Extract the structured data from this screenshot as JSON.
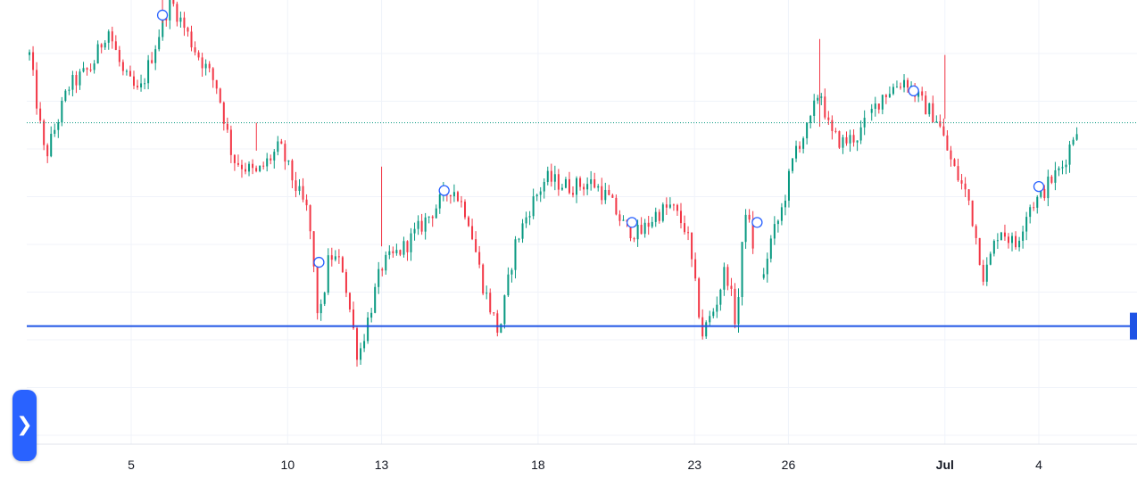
{
  "chart_data": {
    "type": "candlestick",
    "x_tick_labels": [
      "5",
      "10",
      "13",
      "18",
      "23",
      "26",
      "Jul",
      "4"
    ],
    "x_tick_dates": [
      "06-05",
      "06-10",
      "06-13",
      "06-18",
      "06-23",
      "06-26",
      "07-01",
      "07-04"
    ],
    "grid": true,
    "up_color": "#089981",
    "down_color": "#f23645",
    "price_line_color": "#089981",
    "horizontal_line_color": "#1e53e5",
    "marker_color": "#2962ff",
    "y_range_relative": [
      0,
      100
    ],
    "horizontal_line_level": 20,
    "last_price_level": 71,
    "anchors": [
      [
        "06-02",
        88
      ],
      [
        "06-02",
        62
      ],
      [
        "06-03",
        80
      ],
      [
        "06-04",
        85
      ],
      [
        "06-04",
        95
      ],
      [
        "06-05",
        83
      ],
      [
        "06-05",
        78
      ],
      [
        "06-06",
        90
      ],
      [
        "06-06",
        102
      ],
      [
        "06-07",
        90
      ],
      [
        "06-08",
        80
      ],
      [
        "06-08",
        62
      ],
      [
        "06-09",
        58
      ],
      [
        "06-10",
        65
      ],
      [
        "06-10",
        55
      ],
      [
        "06-11",
        48
      ],
      [
        "06-11",
        20
      ],
      [
        "06-11",
        38
      ],
      [
        "06-12",
        35
      ],
      [
        "06-12",
        12
      ],
      [
        "06-13",
        35
      ],
      [
        "06-14",
        40
      ],
      [
        "06-14",
        45
      ],
      [
        "06-15",
        50
      ],
      [
        "06-15",
        55
      ],
      [
        "06-16",
        48
      ],
      [
        "06-16",
        30
      ],
      [
        "06-17",
        18
      ],
      [
        "06-17",
        40
      ],
      [
        "06-18",
        50
      ],
      [
        "06-18",
        57
      ],
      [
        "06-19",
        55
      ],
      [
        "06-20",
        56
      ],
      [
        "06-20",
        52
      ],
      [
        "06-21",
        45
      ],
      [
        "06-21",
        43
      ],
      [
        "06-22",
        48
      ],
      [
        "06-22",
        50
      ],
      [
        "06-23",
        44
      ],
      [
        "06-23",
        18
      ],
      [
        "06-24",
        25
      ],
      [
        "06-24",
        35
      ],
      [
        "06-24",
        20
      ],
      [
        "06-25",
        50
      ],
      [
        "06-25",
        40
      ],
      [
        "06-25",
        28
      ],
      [
        "06-25",
        40
      ],
      [
        "06-26",
        48
      ],
      [
        "06-26",
        65
      ],
      [
        "06-27",
        70
      ],
      [
        "06-27",
        80
      ],
      [
        "06-27",
        68
      ],
      [
        "06-28",
        66
      ],
      [
        "06-28",
        68
      ],
      [
        "06-29",
        78
      ],
      [
        "06-30",
        82
      ],
      [
        "06-30",
        76
      ],
      [
        "07-01",
        72
      ],
      [
        "07-01",
        60
      ],
      [
        "07-02",
        52
      ],
      [
        "07-02",
        32
      ],
      [
        "07-03",
        45
      ],
      [
        "07-03",
        40
      ],
      [
        "07-04",
        50
      ],
      [
        "07-04",
        52
      ],
      [
        "07-04",
        56
      ],
      [
        "07-05",
        60
      ],
      [
        "07-05",
        71
      ]
    ],
    "gaps": [
      [
        "06-29",
        0.0,
        0.05
      ],
      [
        "06-25",
        0.4,
        0.62
      ]
    ],
    "event_markers": [
      [
        "06-06",
        98
      ],
      [
        "06-11",
        36
      ],
      [
        "06-15",
        54
      ],
      [
        "06-21",
        46
      ],
      [
        "06-25",
        46
      ],
      [
        "06-30",
        79
      ],
      [
        "07-04",
        55
      ]
    ]
  }
}
